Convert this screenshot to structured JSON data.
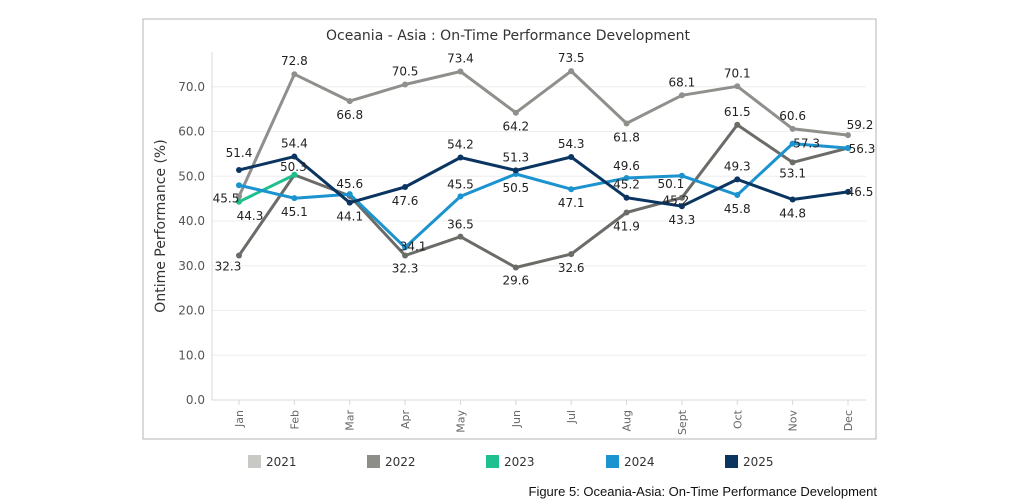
{
  "chart_data": {
    "type": "line",
    "title": "Oceania - Asia  : On-Time  Performance Development",
    "xlabel": "",
    "ylabel": "Ontime Performance (%)",
    "ylim": [
      0,
      80
    ],
    "yticks": [
      "0.0",
      "10.0",
      "20.0",
      "30.0",
      "40.0",
      "50.0",
      "60.0",
      "70.0"
    ],
    "categories": [
      "Jan",
      "Feb",
      "Mar",
      "Apr",
      "May",
      "Jun",
      "Jul",
      "Aug",
      "Sept",
      "Oct",
      "Nov",
      "Dec"
    ],
    "legend_position": "bottom",
    "series": [
      {
        "name": "2021",
        "color": "#8f8f8b",
        "legend_color": "#c8c8c5",
        "values": [
          45.5,
          72.8,
          66.8,
          70.5,
          73.4,
          64.2,
          73.5,
          61.8,
          68.1,
          70.1,
          60.6,
          59.2
        ],
        "labels": [
          "45.5",
          "72.8",
          "66.8",
          "70.5",
          "73.4",
          "64.2",
          "73.5",
          "61.8",
          "68.1",
          "70.1",
          "60.6",
          "59.2"
        ]
      },
      {
        "name": "2022",
        "color": "#6b6b67",
        "legend_color": "#8e8e89",
        "values": [
          32.3,
          50.3,
          45.6,
          32.3,
          36.5,
          29.6,
          32.6,
          41.9,
          45.2,
          61.5,
          53.1,
          56.3
        ],
        "labels": [
          "32.3",
          "50.3",
          "45.6",
          "32.3",
          "36.5",
          "29.6",
          "32.6",
          "41.9",
          "45.2",
          "61.5",
          "53.1",
          "56.3"
        ]
      },
      {
        "name": "2023",
        "color": "#1fbf8f",
        "legend_color": "#1fbf8f",
        "values": [
          44.3,
          50.3,
          null,
          null,
          null,
          null,
          null,
          null,
          null,
          null,
          null,
          null
        ],
        "labels": [
          "44.3",
          "",
          "",
          "",
          "",
          "",
          "",
          "",
          "",
          "",
          "",
          ""
        ]
      },
      {
        "name": "2024",
        "color": "#1b93cf",
        "legend_color": "#1b93cf",
        "values": [
          48.0,
          45.1,
          46.0,
          34.1,
          45.5,
          50.5,
          47.1,
          49.6,
          50.1,
          45.8,
          57.3,
          56.3
        ],
        "labels": [
          "",
          "45.1",
          "",
          "34.1",
          "45.5",
          "50.5",
          "47.1",
          "49.6",
          "50.1",
          "45.8",
          "57.3",
          ""
        ]
      },
      {
        "name": "2025",
        "color": "#0b3561",
        "legend_color": "#0b3561",
        "values": [
          51.4,
          54.4,
          44.1,
          47.6,
          54.2,
          51.3,
          54.3,
          45.2,
          43.3,
          49.3,
          44.8,
          46.5
        ],
        "labels": [
          "51.4",
          "54.4",
          "44.1",
          "47.6",
          "54.2",
          "51.3",
          "54.3",
          "45.2",
          "43.3",
          "49.3",
          "44.8",
          "46.5"
        ]
      }
    ]
  },
  "caption": "Figure 5: Oceania-Asia: On-Time Performance Development"
}
